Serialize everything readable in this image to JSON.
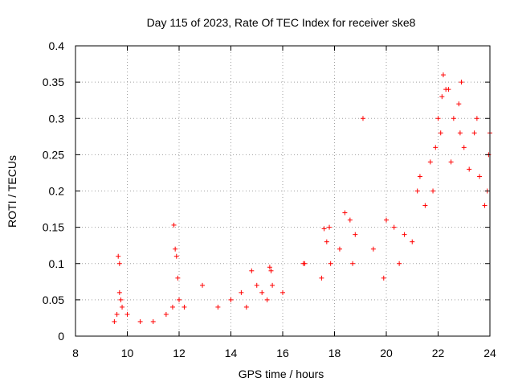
{
  "chart_data": {
    "type": "scatter",
    "title": "Day 115 of 2023, Rate Of TEC Index for receiver ske8",
    "xlabel": "GPS time / hours",
    "ylabel": "ROTI / TECUs",
    "xlim": [
      8,
      24
    ],
    "ylim": [
      0,
      0.4
    ],
    "grid": true,
    "marker": "+",
    "x_ticks": [
      8,
      10,
      12,
      14,
      16,
      18,
      20,
      22,
      24
    ],
    "x_tick_labels": [
      "8",
      "10",
      "12",
      "14",
      "16",
      "18",
      "20",
      "22",
      "24"
    ],
    "y_ticks": [
      0,
      0.05,
      0.1,
      0.15,
      0.2,
      0.25,
      0.3,
      0.35,
      0.4
    ],
    "y_tick_labels": [
      "0",
      "0.05",
      "0.1",
      "0.15",
      "0.2",
      "0.25",
      "0.3",
      "0.35",
      "0.4"
    ],
    "series": [
      {
        "name": "ROTI",
        "color": "#ff0000",
        "x": [
          9.5,
          9.6,
          9.65,
          9.7,
          9.7,
          9.75,
          9.8,
          10.0,
          10.5,
          11.0,
          11.5,
          11.75,
          11.8,
          11.85,
          11.9,
          11.95,
          12.0,
          12.2,
          12.9,
          13.5,
          14.0,
          14.4,
          14.6,
          14.8,
          15.0,
          15.2,
          15.4,
          15.5,
          15.55,
          15.6,
          16.0,
          16.8,
          16.85,
          17.5,
          17.6,
          17.7,
          17.8,
          17.85,
          18.2,
          18.4,
          18.6,
          18.7,
          18.8,
          19.1,
          19.5,
          19.9,
          20.0,
          20.3,
          20.5,
          20.7,
          21.0,
          21.2,
          21.3,
          21.5,
          21.7,
          21.8,
          21.9,
          22.0,
          22.1,
          22.15,
          22.2,
          22.3,
          22.4,
          22.5,
          22.6,
          22.8,
          22.85,
          22.9,
          23.0,
          23.2,
          23.4,
          23.5,
          23.6,
          23.8,
          23.9,
          23.95,
          24.0
        ],
        "y": [
          0.02,
          0.03,
          0.11,
          0.06,
          0.1,
          0.05,
          0.04,
          0.03,
          0.02,
          0.02,
          0.03,
          0.04,
          0.153,
          0.12,
          0.11,
          0.08,
          0.05,
          0.04,
          0.07,
          0.04,
          0.05,
          0.06,
          0.04,
          0.09,
          0.07,
          0.06,
          0.05,
          0.095,
          0.09,
          0.07,
          0.06,
          0.1,
          0.1,
          0.08,
          0.148,
          0.13,
          0.15,
          0.1,
          0.12,
          0.17,
          0.16,
          0.1,
          0.14,
          0.3,
          0.12,
          0.08,
          0.16,
          0.15,
          0.1,
          0.14,
          0.13,
          0.2,
          0.22,
          0.18,
          0.24,
          0.2,
          0.26,
          0.3,
          0.28,
          0.33,
          0.36,
          0.34,
          0.34,
          0.24,
          0.3,
          0.32,
          0.28,
          0.35,
          0.26,
          0.23,
          0.28,
          0.3,
          0.22,
          0.18,
          0.2,
          0.25,
          0.28
        ]
      }
    ]
  }
}
